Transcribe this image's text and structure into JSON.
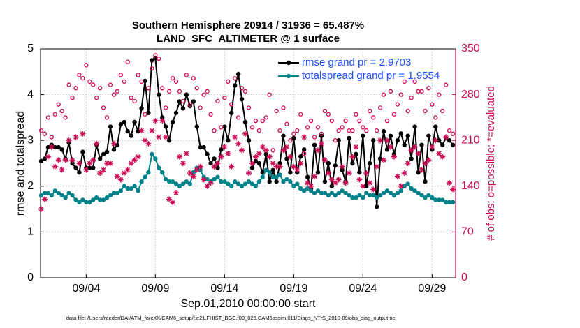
{
  "chart_data": {
    "type": "line",
    "title": [
      "Southern Hemisphere 20914 / 31936 = 65.487%",
      "LAND_SFC_ALTIMETER @ 1 surface"
    ],
    "xlabel": "Sep.01,2010 00:00:00 start",
    "ylabel": "rmse and totalspread",
    "y2label": "# of obs: o=possible; *=evaluated",
    "footnote": "data file: /Users/raeder/DAI/ATM_forcXX/CAM6_setup/f.e21.FHIST_BGC.f09_025.CAM6assim.011/Diags_NTrS_2010-09/obs_diag_output.nc",
    "grid": true,
    "legend": "upper right",
    "xlim": [
      0.7,
      30.7
    ],
    "xticks": [
      {
        "value": 4,
        "label": "09/04"
      },
      {
        "value": 9,
        "label": "09/09"
      },
      {
        "value": 14,
        "label": "09/14"
      },
      {
        "value": 19,
        "label": "09/19"
      },
      {
        "value": 24,
        "label": "09/24"
      },
      {
        "value": 29,
        "label": "09/29"
      }
    ],
    "ylim": [
      0,
      5
    ],
    "yticks": [
      0,
      1,
      2,
      3,
      4,
      5
    ],
    "y2lim": [
      0,
      350
    ],
    "y2ticks": [
      0,
      70,
      140,
      210,
      280,
      350
    ],
    "y2color": "#cc0a55",
    "x": [
      0.75,
      1,
      1.25,
      1.5,
      1.75,
      2,
      2.25,
      2.5,
      2.75,
      3,
      3.25,
      3.5,
      3.75,
      4,
      4.25,
      4.5,
      4.75,
      5,
      5.25,
      5.5,
      5.75,
      6,
      6.25,
      6.5,
      6.75,
      7,
      7.25,
      7.5,
      7.75,
      8,
      8.25,
      8.5,
      8.75,
      9,
      9.25,
      9.5,
      9.75,
      10,
      10.25,
      10.5,
      10.75,
      11,
      11.25,
      11.5,
      11.75,
      12,
      12.25,
      12.5,
      12.75,
      13,
      13.25,
      13.5,
      13.75,
      14,
      14.25,
      14.5,
      14.75,
      15,
      15.25,
      15.5,
      15.75,
      16,
      16.25,
      16.5,
      16.75,
      17,
      17.25,
      17.5,
      17.75,
      18,
      18.25,
      18.5,
      18.75,
      19,
      19.25,
      19.5,
      19.75,
      20,
      20.25,
      20.5,
      20.75,
      21,
      21.25,
      21.5,
      21.75,
      22,
      22.25,
      22.5,
      22.75,
      23,
      23.25,
      23.5,
      23.75,
      24,
      24.25,
      24.5,
      24.75,
      25,
      25.25,
      25.5,
      25.75,
      26,
      26.25,
      26.5,
      26.75,
      27,
      27.25,
      27.5,
      27.75,
      28,
      28.25,
      28.5,
      28.75,
      29,
      29.25,
      29.5,
      29.75,
      30,
      30.25,
      30.5
    ],
    "series": [
      {
        "name": "rmse grand pr = 2.9703",
        "color": "#000000",
        "marker": "filled",
        "values": [
          2.55,
          2.6,
          2.85,
          2.9,
          2.85,
          2.85,
          2.8,
          2.6,
          2.95,
          2.5,
          2.4,
          2.3,
          2.75,
          2.4,
          2.4,
          2.4,
          2.9,
          2.6,
          2.7,
          2.75,
          3.3,
          2.8,
          2.9,
          3.35,
          3.4,
          3.2,
          3.1,
          3.4,
          3.2,
          3.7,
          4.3,
          3.6,
          4.75,
          4.8,
          4.0,
          3.5,
          3.3,
          3.0,
          3.4,
          3.6,
          3.85,
          3.7,
          4.0,
          3.75,
          3.85,
          3.3,
          2.85,
          2.85,
          2.7,
          2.5,
          2.6,
          2.4,
          2.8,
          3.3,
          3.0,
          3.6,
          4.2,
          4.45,
          3.9,
          3.4,
          3.0,
          2.4,
          2.55,
          2.5,
          2.3,
          2.7,
          2.1,
          2.35,
          2.1,
          2.5,
          3.1,
          2.6,
          2.3,
          3.05,
          2.3,
          2.65,
          2.8,
          2.2,
          1.95,
          2.9,
          2.3,
          3.1,
          2.1,
          2.5,
          2.0,
          2.45,
          3.0,
          2.35,
          2.1,
          3.05,
          2.5,
          2.7,
          2.3,
          3.1,
          2.0,
          2.5,
          3.0,
          1.55,
          2.6,
          3.2,
          2.8,
          3.1,
          2.7,
          3.0,
          3.15,
          2.9,
          3.1,
          2.6,
          3.3,
          2.3,
          2.9,
          2.1,
          3.1,
          2.8,
          3.3,
          3.0,
          2.9,
          3.05,
          3.0,
          2.9
        ]
      },
      {
        "name": "totalspread grand pr = 1.9554",
        "color": "#00838a",
        "marker": "filled",
        "values": [
          1.8,
          1.85,
          1.85,
          1.8,
          1.9,
          1.85,
          1.8,
          1.75,
          1.85,
          1.8,
          1.7,
          1.65,
          1.7,
          1.65,
          1.65,
          1.7,
          1.75,
          1.7,
          1.7,
          1.75,
          1.8,
          1.85,
          1.85,
          1.9,
          2.0,
          1.95,
          1.95,
          2.0,
          1.9,
          2.1,
          2.2,
          2.3,
          2.7,
          2.6,
          2.4,
          2.3,
          2.15,
          2.1,
          2.1,
          2.05,
          2.0,
          2.05,
          2.1,
          2.05,
          2.3,
          2.4,
          2.35,
          2.2,
          2.15,
          2.1,
          2.15,
          2.2,
          2.1,
          2.1,
          2.05,
          2.0,
          2.1,
          2.05,
          2.0,
          2.05,
          2.1,
          2.05,
          2.0,
          2.1,
          2.2,
          2.35,
          2.3,
          2.2,
          2.2,
          2.25,
          2.1,
          2.15,
          2.1,
          2.0,
          2.05,
          1.95,
          1.9,
          1.95,
          1.9,
          1.85,
          1.9,
          1.85,
          1.85,
          1.8,
          1.85,
          1.8,
          1.85,
          1.9,
          1.85,
          1.8,
          1.75,
          1.75,
          1.8,
          1.75,
          1.85,
          1.8,
          1.8,
          1.75,
          1.8,
          1.85,
          1.9,
          1.85,
          1.8,
          1.85,
          1.9,
          2.0,
          2.05,
          1.95,
          1.9,
          1.85,
          1.8,
          1.75,
          1.8,
          1.75,
          1.7,
          1.7,
          1.7,
          1.65,
          1.65,
          1.65
        ]
      },
      {
        "color": "#cc0a55",
        "marker": "o",
        "axis": "y2",
        "values": [
          225,
          220,
          245,
          215,
          250,
          265,
          255,
          245,
          295,
          275,
          290,
          310,
          305,
          325,
          300,
          295,
          275,
          290,
          260,
          245,
          295,
          280,
          285,
          310,
          300,
          330,
          275,
          270,
          310,
          300,
          250,
          290,
          320,
          340,
          335,
          290,
          260,
          285,
          305,
          300,
          285,
          270,
          310,
          265,
          305,
          290,
          260,
          280,
          285,
          250,
          225,
          270,
          230,
          275,
          300,
          265,
          305,
          245,
          290,
          285,
          260,
          230,
          240,
          225,
          240,
          245,
          280,
          195,
          255,
          225,
          260,
          235,
          210,
          220,
          225,
          250,
          190,
          230,
          240,
          215,
          230,
          220,
          255,
          250,
          240,
          210,
          225,
          230,
          240,
          225,
          225,
          250,
          240,
          230,
          225,
          255,
          245,
          225,
          260,
          280,
          240,
          285,
          250,
          265,
          280,
          300,
          255,
          275,
          300,
          285,
          285,
          255,
          290,
          265,
          245,
          280,
          255,
          295,
          225,
          220
        ]
      },
      {
        "color": "#cc0a55",
        "marker": "*",
        "axis": "y2",
        "values": [
          105,
          120,
          185,
          200,
          170,
          180,
          165,
          180,
          210,
          180,
          215,
          175,
          220,
          165,
          175,
          180,
          205,
          160,
          165,
          175,
          175,
          205,
          155,
          150,
          160,
          165,
          175,
          180,
          185,
          225,
          210,
          205,
          225,
          240,
          215,
          240,
          215,
          120,
          115,
          130,
          185,
          175,
          190,
          160,
          155,
          165,
          170,
          150,
          140,
          145,
          170,
          175,
          185,
          200,
          190,
          170,
          215,
          205,
          195,
          220,
          160,
          175,
          185,
          190,
          200,
          195,
          185,
          175,
          170,
          170,
          195,
          200,
          185,
          170,
          165,
          175,
          215,
          145,
          140,
          155,
          195,
          205,
          180,
          160,
          150,
          145,
          150,
          170,
          145,
          160,
          185,
          200,
          150,
          140,
          160,
          145,
          135,
          170,
          210,
          180,
          210,
          200,
          185,
          155,
          140,
          160,
          175,
          195,
          200,
          190,
          165,
          175,
          180,
          200,
          210,
          190,
          185,
          215,
          145,
          135
        ]
      }
    ]
  }
}
